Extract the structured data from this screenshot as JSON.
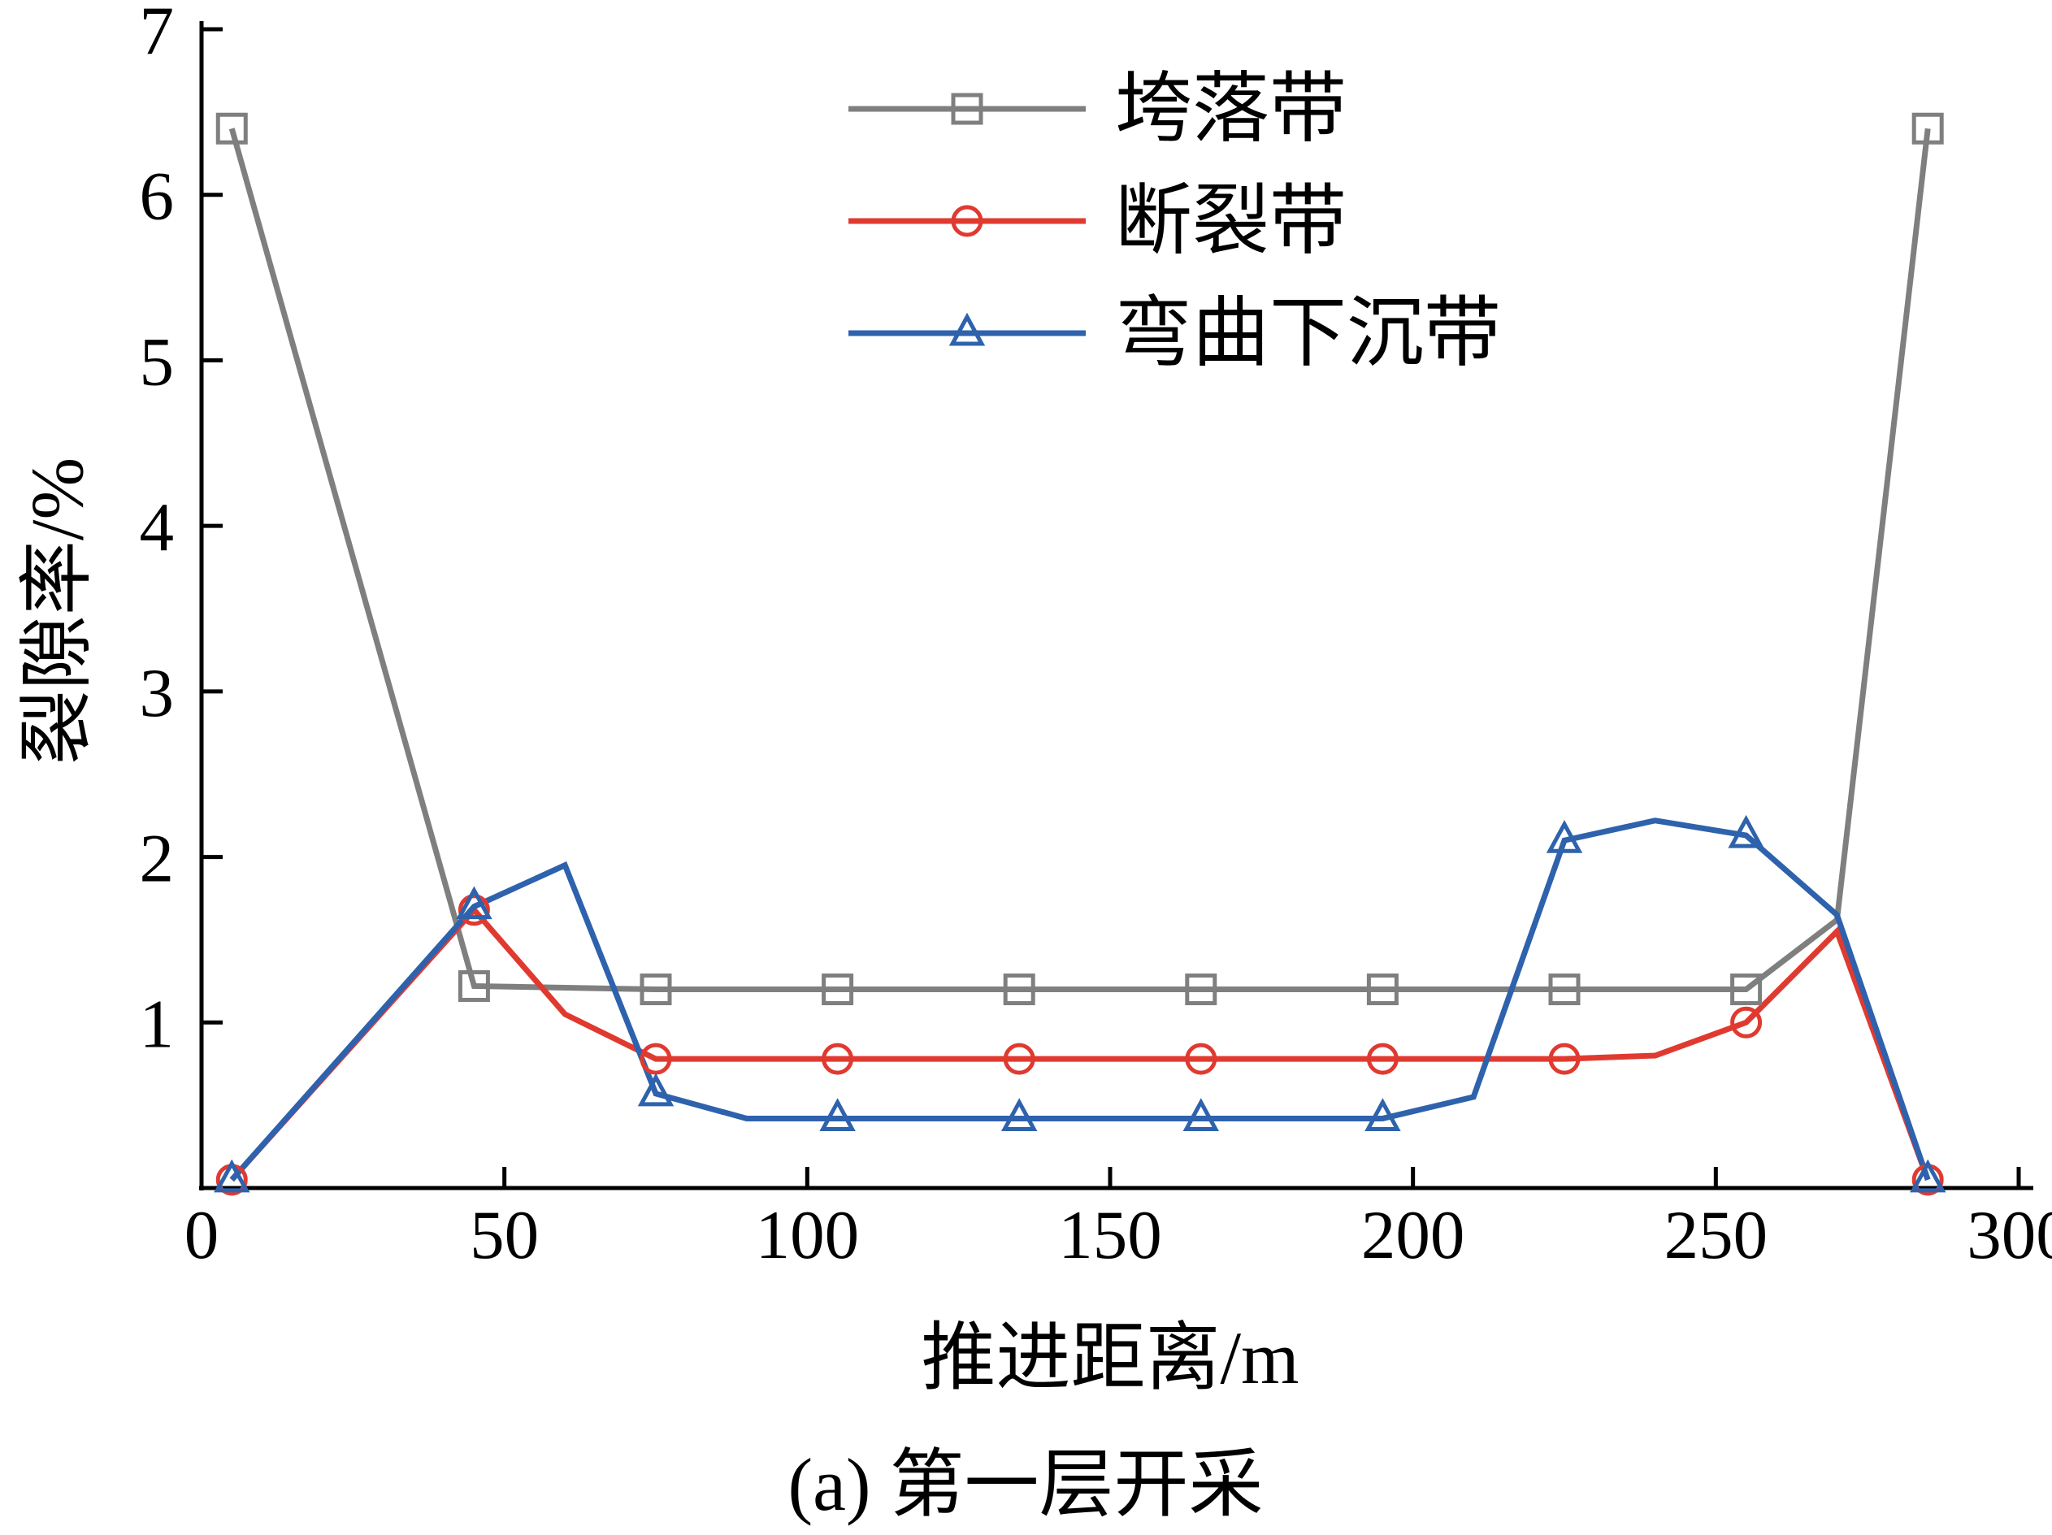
{
  "figure": {
    "caption": "(a) 第一层开采"
  },
  "chart_data": {
    "type": "line",
    "title": "",
    "xlabel": "推进距离/m",
    "ylabel": "裂隙率/%",
    "xlim": [
      0,
      300
    ],
    "ylim": [
      0,
      7
    ],
    "xticks": [
      0,
      50,
      100,
      150,
      200,
      250,
      300
    ],
    "yticks": [
      1,
      2,
      3,
      4,
      5,
      6,
      7
    ],
    "grid": false,
    "legend_position": "top-center-inside",
    "axis_color": "#000000",
    "series": [
      {
        "name": "垮落带",
        "color": "#7f7f7f",
        "marker": "square",
        "points": [
          [
            5,
            6.4,
            1
          ],
          [
            45,
            1.22,
            1
          ],
          [
            75,
            1.2,
            1
          ],
          [
            105,
            1.2,
            1
          ],
          [
            135,
            1.2,
            1
          ],
          [
            165,
            1.2,
            1
          ],
          [
            195,
            1.2,
            1
          ],
          [
            225,
            1.2,
            1
          ],
          [
            255,
            1.2,
            1
          ],
          [
            270,
            1.62,
            0
          ],
          [
            285,
            6.4,
            1
          ]
        ]
      },
      {
        "name": "断裂带",
        "color": "#e03a30",
        "marker": "circle",
        "points": [
          [
            5,
            0.05,
            1
          ],
          [
            45,
            1.68,
            1
          ],
          [
            60,
            1.05,
            0
          ],
          [
            75,
            0.78,
            1
          ],
          [
            105,
            0.78,
            1
          ],
          [
            135,
            0.78,
            1
          ],
          [
            165,
            0.78,
            1
          ],
          [
            195,
            0.78,
            1
          ],
          [
            225,
            0.78,
            1
          ],
          [
            240,
            0.8,
            0
          ],
          [
            255,
            1.0,
            1
          ],
          [
            270,
            1.55,
            0
          ],
          [
            285,
            0.05,
            1
          ]
        ]
      },
      {
        "name": "弯曲下沉带",
        "color": "#2e62ad",
        "marker": "triangle",
        "points": [
          [
            5,
            0.05,
            1
          ],
          [
            45,
            1.7,
            1
          ],
          [
            60,
            1.95,
            0
          ],
          [
            75,
            0.57,
            1
          ],
          [
            90,
            0.42,
            0
          ],
          [
            105,
            0.42,
            1
          ],
          [
            135,
            0.42,
            1
          ],
          [
            165,
            0.42,
            1
          ],
          [
            195,
            0.42,
            1
          ],
          [
            210,
            0.55,
            0
          ],
          [
            225,
            2.1,
            1
          ],
          [
            240,
            2.22,
            0
          ],
          [
            255,
            2.13,
            1
          ],
          [
            270,
            1.65,
            0
          ],
          [
            285,
            0.05,
            1
          ]
        ]
      }
    ]
  }
}
